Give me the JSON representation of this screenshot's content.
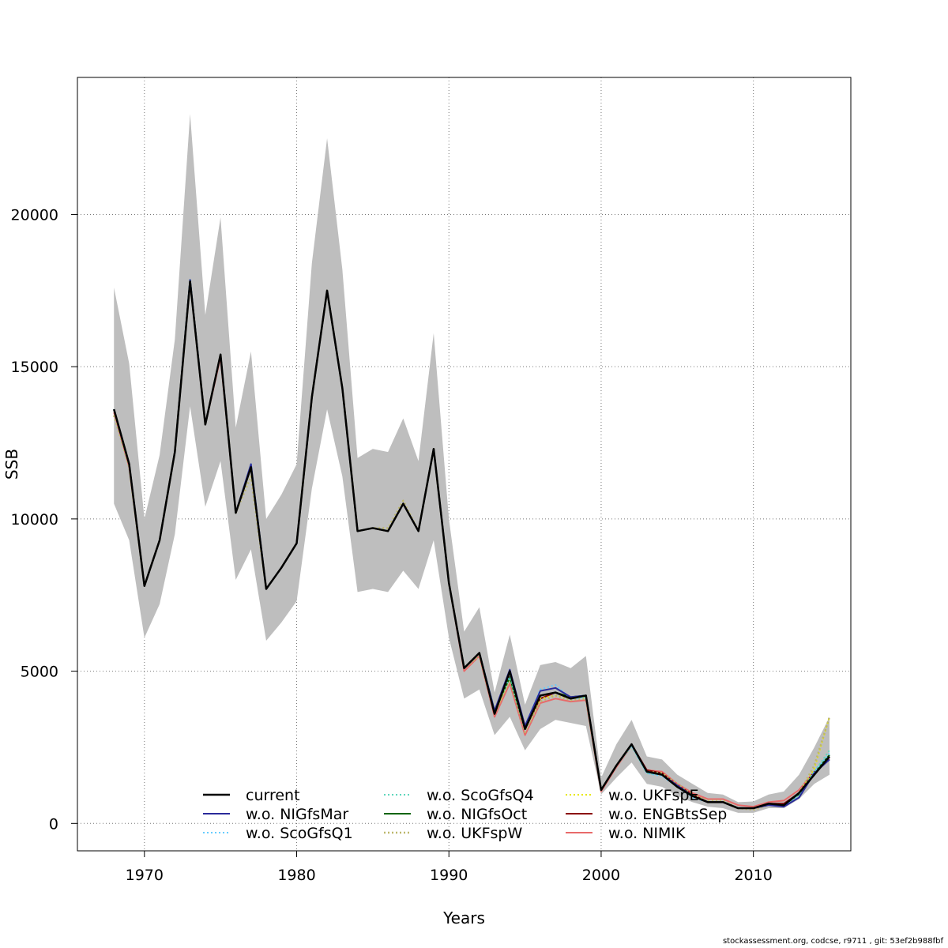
{
  "chart_data": {
    "type": "line",
    "title": "",
    "xlabel": "Years",
    "ylabel": "SSB",
    "xlim": [
      1965.6,
      2016.4
    ],
    "ylim": [
      -900,
      24500
    ],
    "grid": true,
    "xticks": [
      1970,
      1980,
      1990,
      2000,
      2010
    ],
    "yticks": [
      0,
      5000,
      10000,
      15000,
      20000
    ],
    "legend_position": "bottom",
    "x": [
      1968,
      1969,
      1970,
      1971,
      1972,
      1973,
      1974,
      1975,
      1976,
      1977,
      1978,
      1979,
      1980,
      1981,
      1982,
      1983,
      1984,
      1985,
      1986,
      1987,
      1988,
      1989,
      1990,
      1991,
      1992,
      1993,
      1994,
      1995,
      1996,
      1997,
      1998,
      1999,
      2000,
      2001,
      2002,
      2003,
      2004,
      2005,
      2006,
      2007,
      2008,
      2009,
      2010,
      2011,
      2012,
      2013,
      2014,
      2015
    ],
    "band": {
      "color": "#bebebe",
      "upper": [
        17600,
        15100,
        10000,
        12100,
        15900,
        23300,
        16700,
        19900,
        13000,
        15500,
        10000,
        10800,
        11800,
        18400,
        22500,
        18200,
        12000,
        12300,
        12200,
        13300,
        11900,
        16100,
        10000,
        6300,
        7100,
        4300,
        6200,
        3900,
        5200,
        5300,
        5100,
        5500,
        1500,
        2600,
        3400,
        2200,
        2100,
        1600,
        1300,
        1000,
        950,
        700,
        720,
        950,
        1050,
        1600,
        2500,
        3500
      ],
      "lower": [
        10500,
        9300,
        6100,
        7200,
        9500,
        13700,
        10400,
        11900,
        8000,
        9000,
        6000,
        6600,
        7300,
        11000,
        13600,
        11400,
        7600,
        7700,
        7600,
        8300,
        7700,
        9300,
        6100,
        4100,
        4400,
        2900,
        3500,
        2400,
        3100,
        3400,
        3300,
        3200,
        950,
        1500,
        2000,
        1300,
        1200,
        900,
        700,
        550,
        500,
        350,
        350,
        500,
        500,
        800,
        1300,
        1600
      ]
    },
    "series": [
      {
        "name": "current",
        "color": "#000000",
        "dash": "",
        "width": 2.5,
        "values": [
          13600,
          11800,
          7800,
          9300,
          12200,
          17800,
          13100,
          15400,
          10200,
          11700,
          7700,
          8400,
          9200,
          14000,
          17500,
          14300,
          9600,
          9700,
          9600,
          10500,
          9600,
          12300,
          7900,
          5100,
          5600,
          3600,
          5000,
          3100,
          4200,
          4300,
          4100,
          4200,
          1100,
          1900,
          2600,
          1700,
          1600,
          1200,
          900,
          700,
          700,
          500,
          500,
          650,
          600,
          1000,
          1600,
          2200
        ]
      },
      {
        "name": "w.o. NIGfsMar",
        "color": "#2a2a9a",
        "dash": "",
        "width": 2,
        "values": [
          13600,
          11800,
          7800,
          9300,
          12200,
          17850,
          13100,
          15400,
          10200,
          11800,
          7700,
          8400,
          9200,
          14000,
          17500,
          14300,
          9600,
          9700,
          9600,
          10500,
          9600,
          12300,
          7900,
          5100,
          5600,
          3700,
          5050,
          3200,
          4350,
          4450,
          4150,
          4200,
          1100,
          1900,
          2600,
          1700,
          1600,
          1250,
          900,
          700,
          700,
          500,
          500,
          600,
          550,
          850,
          1650,
          2100
        ]
      },
      {
        "name": "w.o. ScoGfsQ1",
        "color": "#66ccff",
        "dash": "2,3",
        "width": 2,
        "values": [
          13600,
          11800,
          7800,
          9300,
          12200,
          17850,
          13100,
          15400,
          10200,
          11800,
          7700,
          8400,
          9200,
          14000,
          17500,
          14300,
          9600,
          9700,
          9600,
          10500,
          9600,
          12300,
          7900,
          5100,
          5600,
          3700,
          4900,
          3200,
          4400,
          4550,
          4100,
          4150,
          1100,
          1900,
          2550,
          1650,
          1550,
          1200,
          850,
          700,
          700,
          500,
          500,
          650,
          600,
          900,
          1700,
          2300
        ]
      },
      {
        "name": "w.o. ScoGfsQ4",
        "color": "#5fd6bc",
        "dash": "2,3",
        "width": 2,
        "values": [
          13600,
          11800,
          7800,
          9300,
          12200,
          17850,
          13100,
          15400,
          10200,
          11800,
          7700,
          8400,
          9200,
          14000,
          17500,
          14300,
          9600,
          9700,
          9600,
          10500,
          9600,
          12300,
          7900,
          5100,
          5600,
          3700,
          4800,
          3100,
          4200,
          4300,
          4100,
          4150,
          1100,
          1900,
          2550,
          1650,
          1600,
          1200,
          900,
          700,
          700,
          500,
          500,
          650,
          600,
          950,
          1700,
          2400
        ]
      },
      {
        "name": "w.o. NIGfsOct",
        "color": "#006400",
        "dash": "",
        "width": 2,
        "values": [
          13600,
          11800,
          7800,
          9300,
          12200,
          17850,
          13100,
          15400,
          10200,
          11700,
          7700,
          8400,
          9200,
          14000,
          17500,
          14300,
          9600,
          9700,
          9600,
          10500,
          9600,
          12300,
          7900,
          5100,
          5600,
          3700,
          4800,
          3100,
          4200,
          4300,
          4150,
          4200,
          1100,
          1900,
          2600,
          1700,
          1600,
          1200,
          900,
          700,
          700,
          500,
          500,
          650,
          600,
          950,
          1650,
          2250
        ]
      },
      {
        "name": "w.o. UKFspW",
        "color": "#bdb76b",
        "dash": "2,3",
        "width": 2.5,
        "values": [
          13400,
          11700,
          7800,
          9300,
          12200,
          17800,
          13100,
          15400,
          10200,
          11400,
          7700,
          8400,
          9200,
          14000,
          17500,
          14300,
          9600,
          9700,
          9700,
          10600,
          9600,
          12300,
          7900,
          5100,
          5500,
          3600,
          4700,
          3000,
          4000,
          4200,
          4050,
          4100,
          1100,
          1900,
          2550,
          1700,
          1650,
          1300,
          950,
          750,
          750,
          500,
          450,
          600,
          600,
          1000,
          1900,
          3500
        ]
      },
      {
        "name": "w.o. UKFspE",
        "color": "#e8e800",
        "dash": "2,3",
        "width": 2,
        "values": [
          13600,
          11800,
          7800,
          9300,
          12200,
          17800,
          13100,
          15400,
          10200,
          11700,
          7700,
          8400,
          9200,
          14000,
          17500,
          14300,
          9600,
          9700,
          9600,
          10500,
          9600,
          12300,
          7900,
          5100,
          5600,
          3600,
          4800,
          3100,
          4100,
          4200,
          4100,
          4150,
          1100,
          1900,
          2600,
          1700,
          1650,
          1250,
          900,
          700,
          700,
          500,
          500,
          650,
          600,
          1000,
          1800,
          3500
        ]
      },
      {
        "name": "w.o. ENGBtsSep",
        "color": "#8b0000",
        "dash": "",
        "width": 2,
        "values": [
          13600,
          11800,
          7800,
          9300,
          12200,
          17800,
          13100,
          15400,
          10200,
          11700,
          7700,
          8400,
          9200,
          14000,
          17500,
          14300,
          9600,
          9700,
          9600,
          10500,
          9600,
          12300,
          7900,
          5100,
          5600,
          3600,
          4900,
          3100,
          4100,
          4300,
          4100,
          4200,
          1100,
          1900,
          2600,
          1750,
          1650,
          1250,
          950,
          700,
          700,
          500,
          500,
          650,
          650,
          1000,
          1700,
          2100
        ]
      },
      {
        "name": "w.o. NIMIK",
        "color": "#e86a6a",
        "dash": "",
        "width": 2,
        "values": [
          13500,
          11700,
          7800,
          9300,
          12200,
          17800,
          13100,
          15300,
          10200,
          11700,
          7700,
          8400,
          9200,
          14000,
          17500,
          14300,
          9600,
          9700,
          9600,
          10500,
          9600,
          12300,
          7900,
          5000,
          5500,
          3500,
          4600,
          2900,
          3950,
          4100,
          4000,
          4050,
          1050,
          1850,
          2550,
          1750,
          1700,
          1300,
          1000,
          800,
          800,
          600,
          550,
          700,
          750,
          1100,
          1700,
          2150
        ]
      }
    ]
  },
  "footer": "stockassessment.org, codcse, r9711 , git: 53ef2b988fbf"
}
